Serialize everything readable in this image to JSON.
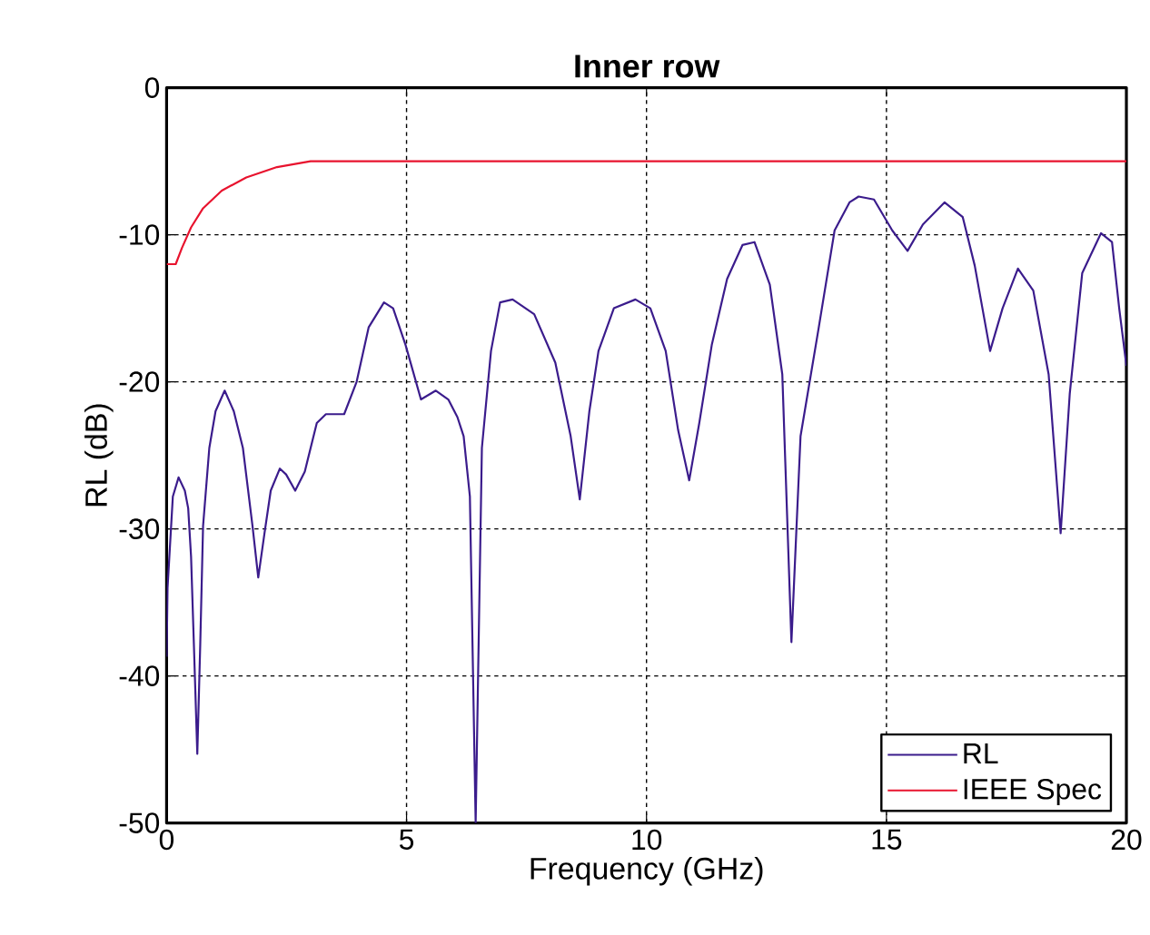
{
  "chart_data": {
    "type": "line",
    "title": "Inner row",
    "xlabel": "Frequency (GHz)",
    "ylabel": "RL (dB)",
    "xlim": [
      0,
      20
    ],
    "ylim": [
      -50,
      0
    ],
    "xticks": [
      0,
      5,
      10,
      15,
      20
    ],
    "yticks": [
      -50,
      -40,
      -30,
      -20,
      -10,
      0
    ],
    "grid": true,
    "legend": "bottom right",
    "line_style": "solid",
    "marker": "none",
    "series": [
      {
        "name": "RL",
        "color": "#3b1c8c",
        "x": [
          0,
          0.02,
          0.13,
          0.25,
          0.38,
          0.45,
          0.51,
          0.57,
          0.64,
          0.7,
          0.76,
          0.89,
          1.02,
          1.21,
          1.4,
          1.59,
          1.79,
          1.91,
          2.04,
          2.17,
          2.36,
          2.49,
          2.68,
          2.88,
          3.13,
          3.32,
          3.7,
          3.96,
          4.21,
          4.53,
          4.72,
          4.98,
          5.3,
          5.61,
          5.87,
          6.06,
          6.19,
          6.32,
          6.44,
          6.57,
          6.76,
          6.95,
          7.21,
          7.66,
          8.1,
          8.42,
          8.61,
          8.81,
          9.0,
          9.32,
          9.77,
          10.08,
          10.4,
          10.66,
          10.89,
          11.1,
          11.36,
          11.68,
          12.0,
          12.25,
          12.57,
          12.83,
          13.02,
          13.21,
          13.59,
          13.92,
          14.23,
          14.42,
          14.74,
          15.12,
          15.44,
          15.76,
          16.21,
          16.59,
          16.84,
          17.16,
          17.42,
          17.74,
          18.06,
          18.38,
          18.63,
          18.82,
          19.08,
          19.47,
          19.7,
          19.85,
          20
        ],
        "values": [
          -38.7,
          -34,
          -27.8,
          -26.5,
          -27.4,
          -28.6,
          -31.9,
          -38,
          -45.3,
          -38,
          -29.8,
          -24.5,
          -22,
          -20.6,
          -22,
          -24.5,
          -29.8,
          -33.3,
          -30.3,
          -27.4,
          -25.9,
          -26.3,
          -27.4,
          -26.1,
          -22.8,
          -22.2,
          -22.2,
          -20,
          -16.3,
          -14.6,
          -15,
          -17.5,
          -21.2,
          -20.6,
          -21.2,
          -22.4,
          -23.7,
          -27.8,
          -50,
          -24.5,
          -17.9,
          -14.6,
          -14.4,
          -15.4,
          -18.7,
          -23.7,
          -28,
          -22,
          -17.9,
          -15,
          -14.4,
          -15,
          -17.9,
          -23.3,
          -26.7,
          -22.8,
          -17.5,
          -13,
          -10.7,
          -10.5,
          -13.4,
          -19.5,
          -37.7,
          -23.7,
          -16.3,
          -9.7,
          -7.8,
          -7.4,
          -7.6,
          -9.7,
          -11.1,
          -9.3,
          -7.8,
          -8.8,
          -12.1,
          -17.9,
          -15,
          -12.3,
          -13.8,
          -19.5,
          -30.3,
          -20.8,
          -12.6,
          -9.9,
          -10.5,
          -15,
          -18.9
        ]
      },
      {
        "name": "IEEE Spec",
        "color": "#e8132e",
        "x": [
          0,
          0.19,
          0.32,
          0.51,
          0.76,
          1.15,
          1.66,
          2.3,
          3.0,
          20
        ],
        "values": [
          -12,
          -12,
          -10.9,
          -9.5,
          -8.2,
          -7,
          -6.1,
          -5.4,
          -5,
          -5
        ]
      }
    ]
  }
}
